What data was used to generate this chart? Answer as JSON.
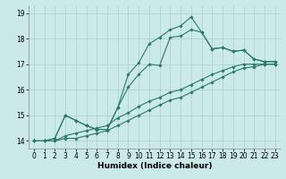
{
  "xlabel": "Humidex (Indice chaleur)",
  "x": [
    0,
    1,
    2,
    3,
    4,
    5,
    6,
    7,
    8,
    9,
    10,
    11,
    12,
    13,
    14,
    15,
    16,
    17,
    18,
    19,
    20,
    21,
    22,
    23
  ],
  "series1": [
    14.0,
    14.0,
    14.0,
    14.1,
    14.1,
    14.2,
    14.3,
    14.4,
    14.6,
    14.8,
    15.0,
    15.2,
    15.4,
    15.6,
    15.7,
    15.9,
    16.1,
    16.3,
    16.5,
    16.7,
    16.85,
    16.9,
    17.0,
    17.0
  ],
  "series2": [
    14.0,
    14.0,
    14.0,
    14.2,
    14.3,
    14.4,
    14.5,
    14.6,
    14.9,
    15.1,
    15.35,
    15.55,
    15.7,
    15.9,
    16.0,
    16.2,
    16.4,
    16.6,
    16.75,
    16.9,
    17.0,
    17.0,
    17.0,
    17.0
  ],
  "series3": [
    14.0,
    14.0,
    14.1,
    15.0,
    14.8,
    14.6,
    14.45,
    14.45,
    15.3,
    16.1,
    16.6,
    17.0,
    16.95,
    18.05,
    18.1,
    18.35,
    18.25,
    17.6,
    17.65,
    17.5,
    17.55,
    17.2,
    17.1,
    17.1
  ],
  "series4": [
    14.0,
    14.0,
    14.1,
    15.0,
    14.8,
    14.6,
    14.45,
    14.45,
    15.3,
    16.6,
    17.05,
    17.8,
    18.05,
    18.35,
    18.5,
    18.85,
    18.25,
    17.6,
    17.65,
    17.5,
    17.55,
    17.2,
    17.1,
    17.1
  ],
  "ylim": [
    13.7,
    19.3
  ],
  "yticks": [
    14,
    15,
    16,
    17,
    18,
    19
  ],
  "xlim": [
    -0.5,
    23.5
  ],
  "xticks": [
    0,
    1,
    2,
    3,
    4,
    5,
    6,
    7,
    8,
    9,
    10,
    11,
    12,
    13,
    14,
    15,
    16,
    17,
    18,
    19,
    20,
    21,
    22,
    23
  ],
  "line_color": "#2A7A6A",
  "bg_color": "#CBE9E9",
  "grid_color": "#AACFCF",
  "markersize": 1.8,
  "linewidth": 0.8,
  "tick_labelsize": 5.5,
  "xlabel_fontsize": 6.5
}
